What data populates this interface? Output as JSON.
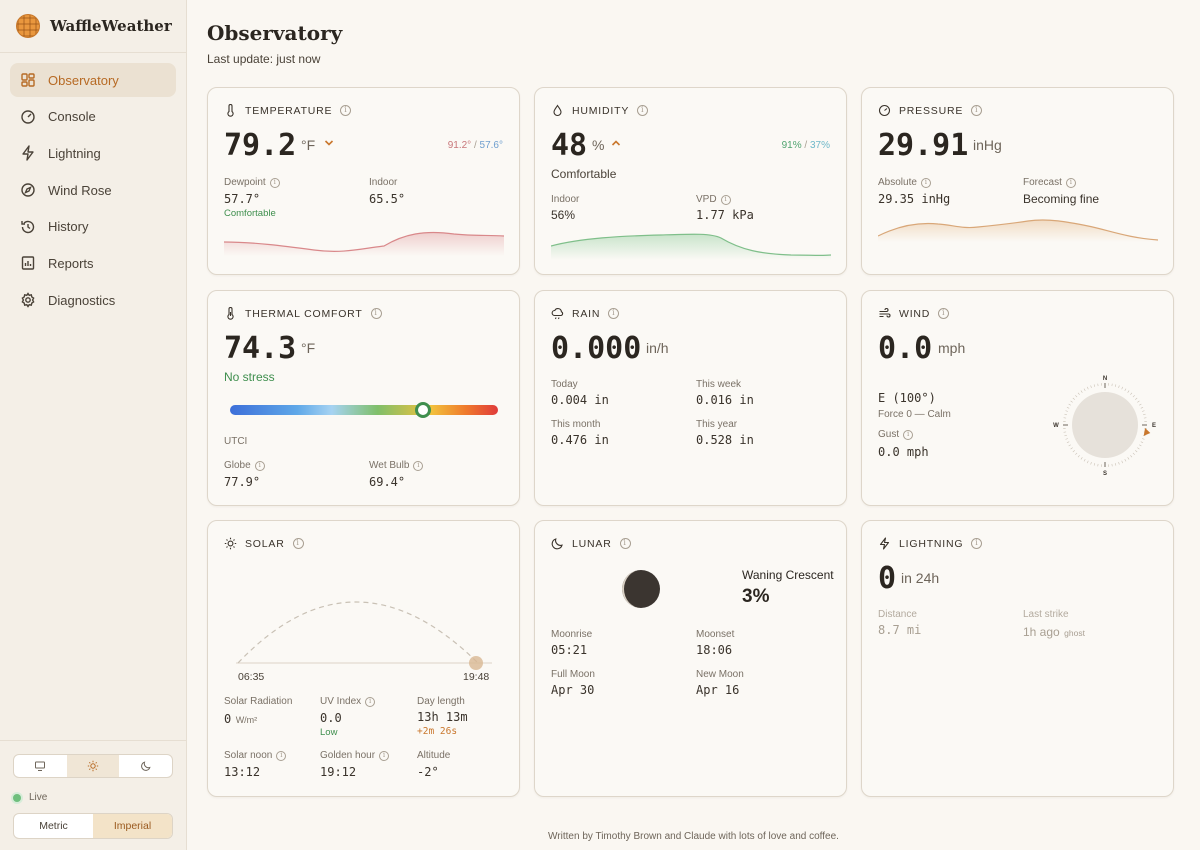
{
  "app": {
    "name": "WaffleWeather"
  },
  "sidebar": {
    "items": [
      {
        "label": "Observatory",
        "icon": "grid-icon"
      },
      {
        "label": "Console",
        "icon": "gauge-icon"
      },
      {
        "label": "Lightning",
        "icon": "bolt-icon"
      },
      {
        "label": "Wind Rose",
        "icon": "compass-icon"
      },
      {
        "label": "History",
        "icon": "history-icon"
      },
      {
        "label": "Reports",
        "icon": "report-icon"
      },
      {
        "label": "Diagnostics",
        "icon": "gear-icon"
      }
    ],
    "status": "Live",
    "units": {
      "metric": "Metric",
      "imperial": "Imperial",
      "selected": "Imperial"
    },
    "theme": {
      "selected": "light"
    }
  },
  "header": {
    "title": "Observatory",
    "subtitle": "Last update: just now"
  },
  "temperature": {
    "title": "TEMPERATURE",
    "value": "79.2",
    "unit": "°F",
    "high": "91.2°",
    "low": "57.6°",
    "dewpoint_label": "Dewpoint",
    "dewpoint": "57.7°",
    "dewpoint_note": "Comfortable",
    "indoor_label": "Indoor",
    "indoor": "65.5°",
    "trend": "falling"
  },
  "humidity": {
    "title": "HUMIDITY",
    "value": "48",
    "unit": "%",
    "high": "91%",
    "low": "37%",
    "status": "Comfortable",
    "indoor_label": "Indoor",
    "indoor": "56%",
    "vpd_label": "VPD",
    "vpd": "1.77 kPa",
    "trend": "rising"
  },
  "pressure": {
    "title": "PRESSURE",
    "value": "29.91",
    "unit": "inHg",
    "absolute_label": "Absolute",
    "absolute": "29.35 inHg",
    "forecast_label": "Forecast",
    "forecast": "Becoming fine"
  },
  "thermal": {
    "title": "THERMAL COMFORT",
    "value": "74.3",
    "unit": "°F",
    "status": "No stress",
    "scale_label": "UTCI",
    "scale_position": 0.72,
    "globe_label": "Globe",
    "globe": "77.9°",
    "wetbulb_label": "Wet Bulb",
    "wetbulb": "69.4°"
  },
  "rain": {
    "title": "RAIN",
    "value": "0.000",
    "unit": "in/h",
    "today_label": "Today",
    "today": "0.004 in",
    "week_label": "This week",
    "week": "0.016 in",
    "month_label": "This month",
    "month": "0.476 in",
    "year_label": "This year",
    "year": "0.528 in"
  },
  "wind": {
    "title": "WIND",
    "value": "0.0",
    "unit": "mph",
    "direction": "E (100°)",
    "force": "Force 0 — Calm",
    "gust_label": "Gust",
    "gust": "0.0 mph",
    "compass": {
      "n": "N",
      "e": "E",
      "s": "S",
      "w": "W"
    },
    "direction_deg": 100
  },
  "solar": {
    "title": "SOLAR",
    "sunrise": "06:35",
    "sunset": "19:48",
    "radiation_label": "Solar Radiation",
    "radiation": "0",
    "radiation_unit": "W/m²",
    "uv_label": "UV Index",
    "uv": "0.0",
    "uv_note": "Low",
    "daylength_label": "Day length",
    "daylength": "13h 13m",
    "daylength_delta": "+2m 26s",
    "noon_label": "Solar noon",
    "noon": "13:12",
    "golden_label": "Golden hour",
    "golden": "19:12",
    "altitude_label": "Altitude",
    "altitude": "-2°"
  },
  "lunar": {
    "title": "LUNAR",
    "phase": "Waning Crescent",
    "illumination": "3%",
    "moonrise_label": "Moonrise",
    "moonrise": "05:21",
    "moonset_label": "Moonset",
    "moonset": "18:06",
    "fullmoon_label": "Full Moon",
    "fullmoon": "Apr 30",
    "newmoon_label": "New Moon",
    "newmoon": "Apr 16"
  },
  "lightning": {
    "title": "LIGHTNING",
    "count": "0",
    "period": "in 24h",
    "distance_label": "Distance",
    "distance": "8.7 mi",
    "last_label": "Last strike",
    "last": "1h ago",
    "last_note": "ghost"
  },
  "footer": {
    "text": "Written by Timothy Brown and Claude with lots of love and coffee."
  },
  "colors": {
    "accent": "#b76a24",
    "temp_spark": "#d9888a",
    "humidity_spark": "#7fbf8a",
    "pressure_spark": "#d9a778"
  }
}
